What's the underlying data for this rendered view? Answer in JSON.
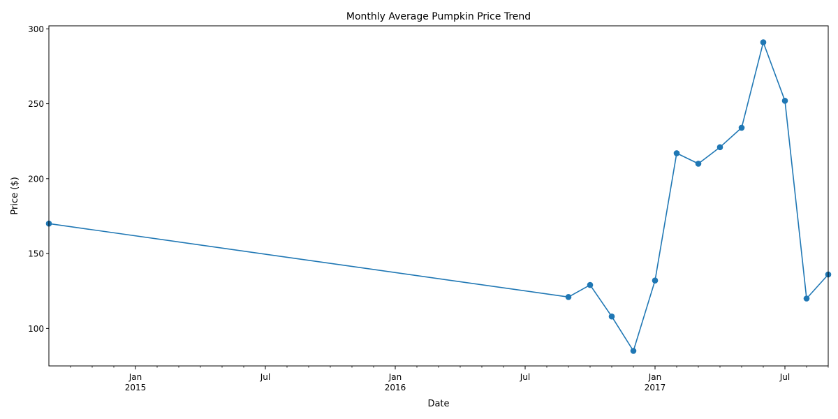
{
  "chart_data": {
    "type": "line",
    "title": "Monthly Average Pumpkin Price Trend",
    "xlabel": "Date",
    "ylabel": "Price ($)",
    "x_range": [
      "2014-09",
      "2017-09"
    ],
    "ylim": [
      75,
      302
    ],
    "y_ticks": [
      100,
      150,
      200,
      250,
      300
    ],
    "x_major_ticks": [
      {
        "date": "2015-01",
        "label": "Jan",
        "year": "2015"
      },
      {
        "date": "2015-07",
        "label": "Jul",
        "year": ""
      },
      {
        "date": "2016-01",
        "label": "Jan",
        "year": "2016"
      },
      {
        "date": "2016-07",
        "label": "Jul",
        "year": ""
      },
      {
        "date": "2017-01",
        "label": "Jan",
        "year": "2017"
      },
      {
        "date": "2017-07",
        "label": "Jul",
        "year": ""
      }
    ],
    "grid": false,
    "marker": "circle",
    "series_color": "#1f77b4",
    "series": [
      {
        "x": [
          "2014-09",
          "2016-09",
          "2016-10",
          "2016-11",
          "2016-12",
          "2017-01",
          "2017-02",
          "2017-03",
          "2017-04",
          "2017-05",
          "2017-06",
          "2017-07",
          "2017-08",
          "2017-09"
        ],
        "values": [
          170,
          121,
          129,
          108,
          85,
          132,
          217,
          210,
          221,
          234,
          291,
          252,
          120,
          136
        ]
      }
    ]
  }
}
